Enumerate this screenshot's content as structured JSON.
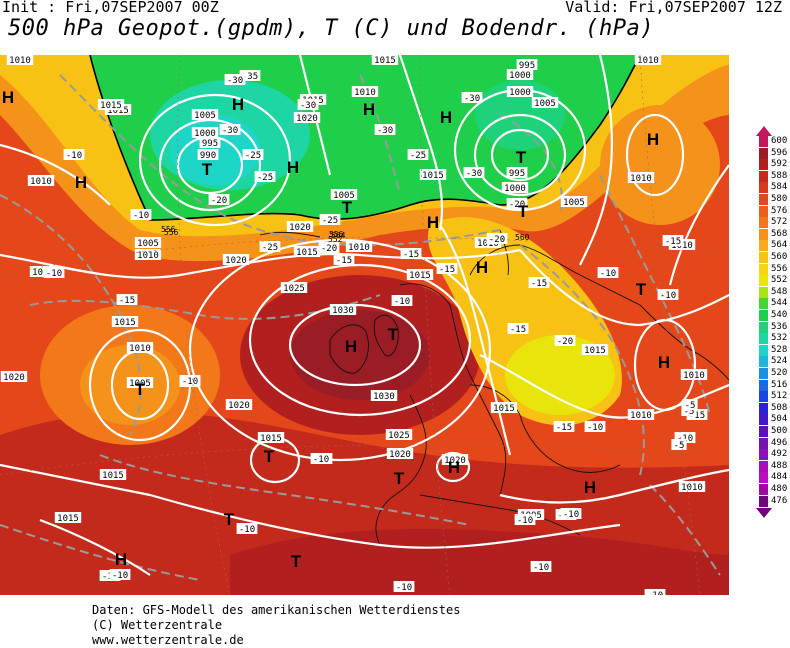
{
  "header": {
    "init": "Init : Fri,07SEP2007 00Z",
    "valid": "Valid: Fri,07SEP2007 12Z",
    "title": "500 hPa Geopot.(gpdm), T (C) und Bodendr. (hPa)"
  },
  "colors": {
    "ocean_base": "#e8561a",
    "cold_green": "#1fcf4a",
    "cold_cyan": "#1ed6a0",
    "yellow": "#f5d60a",
    "orange": "#f4a21a",
    "warm_red": "#c8301a",
    "deep_red": "#a81424",
    "isobar": "#ffffff",
    "isotherm": "#9a9a9a"
  },
  "legend": {
    "ticks": [
      {
        "value": "600",
        "color": "#c2185b"
      },
      {
        "value": "596",
        "color": "#9a1c24"
      },
      {
        "value": "592",
        "color": "#b1201e"
      },
      {
        "value": "588",
        "color": "#c42a1c"
      },
      {
        "value": "584",
        "color": "#d7381c"
      },
      {
        "value": "580",
        "color": "#e4481a"
      },
      {
        "value": "576",
        "color": "#ec5e1a"
      },
      {
        "value": "572",
        "color": "#f2781a"
      },
      {
        "value": "568",
        "color": "#f5921a"
      },
      {
        "value": "564",
        "color": "#f7ac18"
      },
      {
        "value": "560",
        "color": "#f8c214"
      },
      {
        "value": "556",
        "color": "#f6d60e"
      },
      {
        "value": "552",
        "color": "#e9e40a"
      },
      {
        "value": "548",
        "color": "#a8e418"
      },
      {
        "value": "544",
        "color": "#42d830"
      },
      {
        "value": "540",
        "color": "#1fcf4a"
      },
      {
        "value": "536",
        "color": "#1ed27a"
      },
      {
        "value": "532",
        "color": "#1ed6a4"
      },
      {
        "value": "528",
        "color": "#1ed6c8"
      },
      {
        "value": "524",
        "color": "#1eb6dc"
      },
      {
        "value": "520",
        "color": "#1c8fe0"
      },
      {
        "value": "516",
        "color": "#1c68e2"
      },
      {
        "value": "512",
        "color": "#1a44e4"
      },
      {
        "value": "508",
        "color": "#2a22d8"
      },
      {
        "value": "504",
        "color": "#4218c8"
      },
      {
        "value": "500",
        "color": "#5a12b8"
      },
      {
        "value": "496",
        "color": "#7414b0"
      },
      {
        "value": "492",
        "color": "#8c10b4"
      },
      {
        "value": "488",
        "color": "#a60cb8"
      },
      {
        "value": "484",
        "color": "#bc0cbc"
      },
      {
        "value": "480",
        "color": "#a008a0"
      },
      {
        "value": "476",
        "color": "#6c0878"
      }
    ]
  },
  "map": {
    "pressure_labels": [
      "1010",
      "1015",
      "1005",
      "1000",
      "995",
      "990",
      "1015",
      "1020",
      "1010",
      "1015",
      "995",
      "1000",
      "1005",
      "1000",
      "995",
      "1000",
      "1005",
      "1010",
      "1015",
      "1010",
      "1005",
      "1010",
      "1015",
      "1005",
      "1010",
      "1015",
      "1020",
      "1015",
      "1010",
      "1010",
      "1015",
      "1010",
      "1005",
      "1015",
      "1025",
      "1030",
      "1020",
      "1030",
      "1025",
      "1015",
      "1020",
      "1020",
      "1010",
      "1015",
      "1020",
      "1015",
      "1010",
      "1010",
      "1010",
      "1005",
      "1015",
      "1020",
      "1015"
    ],
    "temp_labels": [
      "-35",
      "-30",
      "-30",
      "-30",
      "-25",
      "-25",
      "-30",
      "-30",
      "-25",
      "-30",
      "-20",
      "-25",
      "-20",
      "-25",
      "-20",
      "-15",
      "-15",
      "-15",
      "-20",
      "-10",
      "-15",
      "-10",
      "-10",
      "-15",
      "-10",
      "-10",
      "-15",
      "-15",
      "-10",
      "-15",
      "-20",
      "-10",
      "-15",
      "-10",
      "-10",
      "-5",
      "-5",
      "-10",
      "-10",
      "-10",
      "-10",
      "-10",
      "-10",
      "-10",
      "-10",
      "-10",
      "-10",
      "-10",
      "-5",
      "-10"
    ],
    "pressure_centers": [
      "H",
      "H",
      "T",
      "H",
      "H",
      "H",
      "T",
      "H",
      "H",
      "T",
      "H",
      "H",
      "T",
      "T",
      "H",
      "T",
      "H",
      "T",
      "T",
      "H",
      "T",
      "H",
      "T",
      "H",
      "T"
    ],
    "geopot_labels": [
      "556",
      "556",
      "552",
      "556",
      "560",
      "564"
    ]
  },
  "footer": {
    "line1": "Daten: GFS-Modell des amerikanischen Wetterdienstes",
    "line2": "(C) Wetterzentrale",
    "line3": "www.wetterzentrale.de"
  }
}
